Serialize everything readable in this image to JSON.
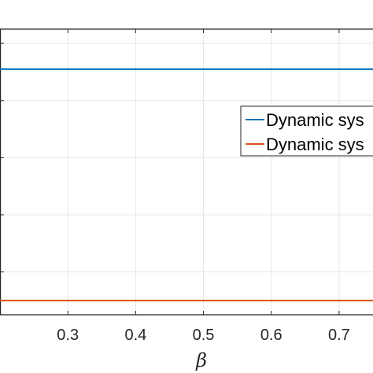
{
  "chart_data": {
    "type": "line",
    "title": "",
    "xlabel": "β",
    "ylabel": "",
    "xlim": [
      0.2,
      0.75
    ],
    "ylim": [
      0,
      1
    ],
    "grid": true,
    "x_ticks": [
      0.3,
      0.4,
      0.5,
      0.6,
      0.7
    ],
    "x_tick_labels": [
      "0.3",
      "0.4",
      "0.5",
      "0.6",
      "0.7"
    ],
    "y_grid_values": [
      0.15,
      0.35,
      0.55,
      0.75,
      0.95
    ],
    "legend_position": "right",
    "series": [
      {
        "name": "Dynamic sys",
        "color": "#0072BD",
        "x": [
          0.2,
          0.75
        ],
        "y": [
          0.86,
          0.86
        ]
      },
      {
        "name": "Dynamic sys",
        "color": "#D95319",
        "x": [
          0.2,
          0.75
        ],
        "y": [
          0.05,
          0.05
        ]
      }
    ]
  }
}
